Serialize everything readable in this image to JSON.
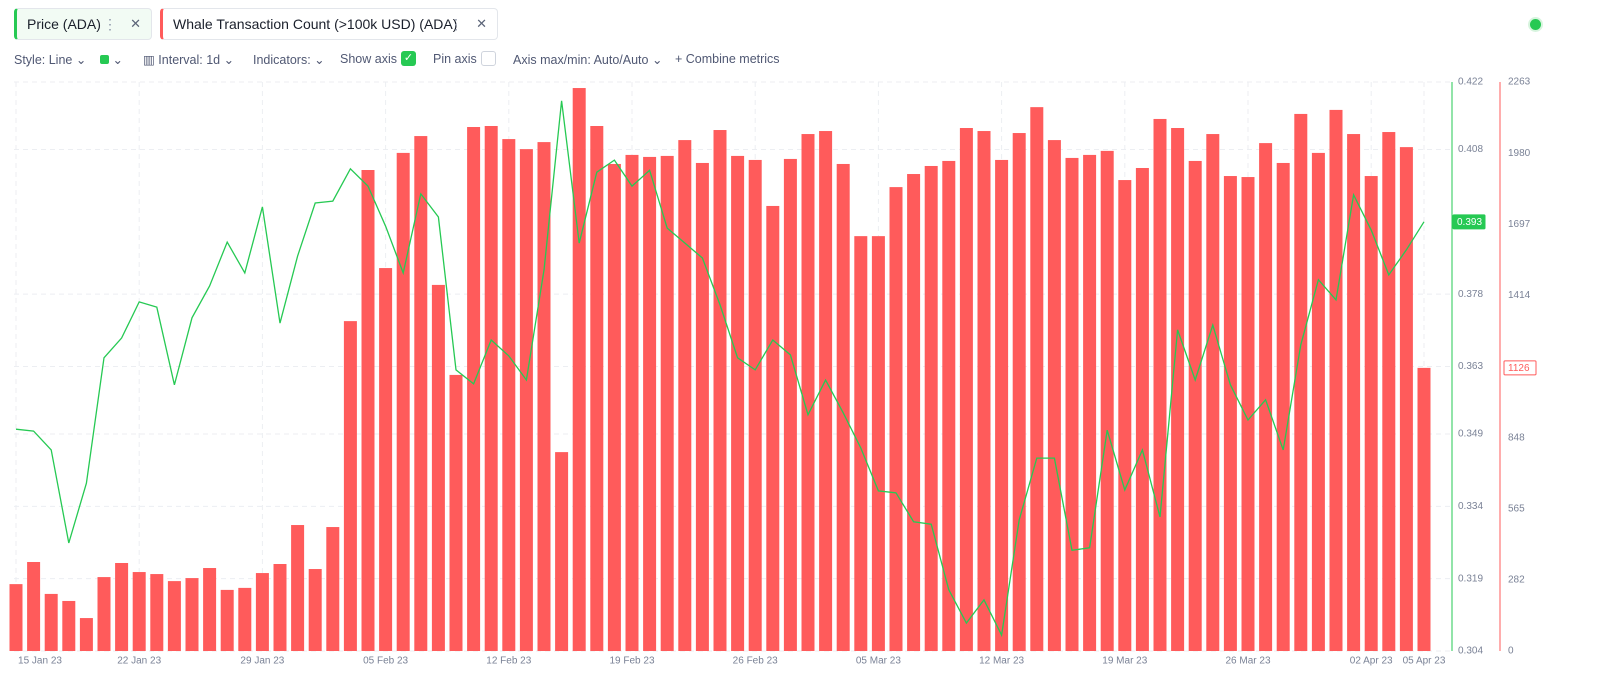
{
  "ui": {
    "toolbar": {
      "style": "Style: Line",
      "interval": "Interval: 1d",
      "indicators": "Indicators:",
      "show_axis": "Show axis",
      "pin_axis": "Pin axis",
      "axis_minmax": "Axis max/min: Auto/Auto",
      "combine": "Combine metrics"
    }
  },
  "chart_data": {
    "type": "combo",
    "categories": [
      "15 Jan 23",
      null,
      null,
      null,
      null,
      null,
      null,
      "22 Jan 23",
      null,
      null,
      null,
      null,
      null,
      null,
      "29 Jan 23",
      null,
      null,
      null,
      null,
      null,
      null,
      "05 Feb 23",
      null,
      null,
      null,
      null,
      null,
      null,
      "12 Feb 23",
      null,
      null,
      null,
      null,
      null,
      null,
      "19 Feb 23",
      null,
      null,
      null,
      null,
      null,
      null,
      "26 Feb 23",
      null,
      null,
      null,
      null,
      null,
      null,
      "05 Mar 23",
      null,
      null,
      null,
      null,
      null,
      null,
      "12 Mar 23",
      null,
      null,
      null,
      null,
      null,
      null,
      "19 Mar 23",
      null,
      null,
      null,
      null,
      null,
      null,
      "26 Mar 23",
      null,
      null,
      null,
      null,
      null,
      null,
      "02 Apr 23",
      null,
      null,
      "05 Apr 23"
    ],
    "series": [
      {
        "name": "Price (ADA)",
        "type": "line",
        "color": "#26c953",
        "axis": "y",
        "values": [
          0.35,
          0.3496,
          0.3457,
          0.3264,
          0.3388,
          0.3648,
          0.3689,
          0.3764,
          0.3753,
          0.3592,
          0.3731,
          0.3797,
          0.3888,
          0.3824,
          0.3961,
          0.372,
          0.3859,
          0.3969,
          0.3973,
          0.404,
          0.4004,
          0.3921,
          0.3824,
          0.3988,
          0.394,
          0.3623,
          0.3594,
          0.3685,
          0.3652,
          0.3602,
          0.383,
          0.4181,
          0.3886,
          0.4033,
          0.4058,
          0.4004,
          0.4037,
          0.3917,
          0.3886,
          0.3855,
          0.3758,
          0.3648,
          0.3623,
          0.3685,
          0.3654,
          0.353,
          0.3602,
          0.3534,
          0.3461,
          0.3372,
          0.3368,
          0.3308,
          0.3303,
          0.3167,
          0.3098,
          0.3146,
          0.3073,
          0.3312,
          0.344,
          0.344,
          0.3249,
          0.3254,
          0.3498,
          0.3374,
          0.3457,
          0.3318,
          0.3706,
          0.3602,
          0.3716,
          0.3592,
          0.3519,
          0.3561,
          0.3457,
          0.3675,
          0.381,
          0.3768,
          0.3986,
          0.3913,
          0.382,
          0.3872,
          0.393
        ]
      },
      {
        "name": "Whale Transaction Count (>100k USD) (ADA)",
        "type": "bar",
        "color": "#ff5b5b",
        "axis": "y2",
        "values": [
          266,
          354,
          227,
          199,
          131,
          294,
          350,
          314,
          306,
          278,
          290,
          330,
          243,
          251,
          310,
          346,
          501,
          326,
          493,
          1312,
          1913,
          1523,
          1981,
          2048,
          1456,
          1098,
          2084,
          2088,
          2036,
          1996,
          2024,
          791,
          2239,
          2088,
          1937,
          1973,
          1965,
          1969,
          2032,
          1941,
          2072,
          1969,
          1953,
          1770,
          1957,
          2056,
          2068,
          1937,
          1650,
          1650,
          1845,
          1897,
          1929,
          1949,
          2080,
          2068,
          1953,
          2060,
          2163,
          2032,
          1961,
          1973,
          1989,
          1873,
          1921,
          2116,
          2080,
          1949,
          2056,
          1889,
          1885,
          2020,
          1941,
          2136,
          1981,
          2152,
          2056,
          1889,
          2064,
          2004,
          1126
        ]
      }
    ],
    "ylim": [
      0.304,
      0.422
    ],
    "yticks": [
      0.304,
      0.319,
      0.334,
      0.349,
      0.363,
      0.378,
      0.408,
      0.422
    ],
    "y2lim": [
      0,
      2263
    ],
    "y2ticks": [
      0,
      282,
      565,
      848,
      1414,
      1697,
      1980,
      2263
    ],
    "grid": true
  }
}
